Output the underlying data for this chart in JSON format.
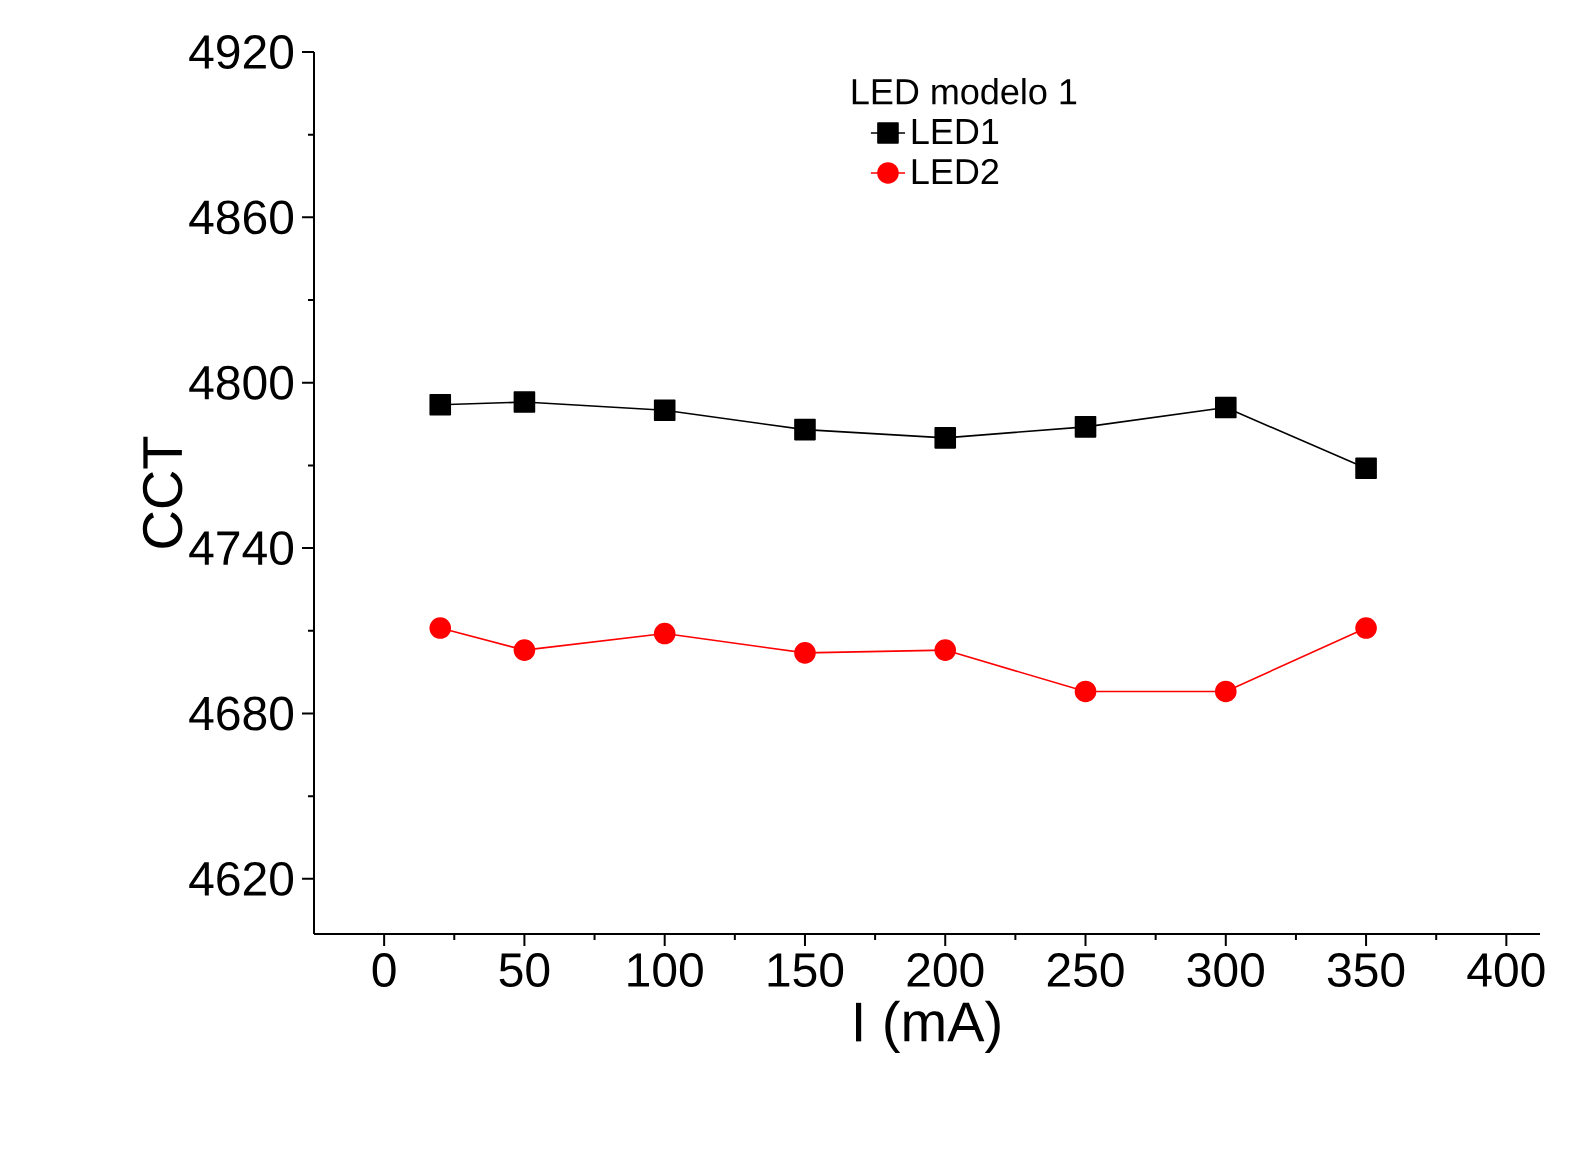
{
  "chart_data": {
    "type": "line",
    "xlabel": "I (mA)",
    "ylabel": "CCT",
    "legend_title": "LED modelo 1",
    "legend": "top",
    "grid": false,
    "x": [
      20,
      50,
      100,
      150,
      200,
      250,
      300,
      350
    ],
    "xlim": [
      -25,
      412
    ],
    "xticks": [
      0,
      50,
      100,
      150,
      200,
      250,
      300,
      350,
      400
    ],
    "ylim": [
      4600,
      4920
    ],
    "yticks": [
      4620,
      4680,
      4740,
      4800,
      4860,
      4920
    ],
    "series": [
      {
        "name": "LED1",
        "color": "#000000",
        "marker": "square",
        "values": [
          4792,
          4793,
          4790,
          4783,
          4780,
          4784,
          4791,
          4769
        ]
      },
      {
        "name": "LED2",
        "color": "#ff0000",
        "marker": "circle",
        "values": [
          4711,
          4703,
          4709,
          4702,
          4703,
          4688,
          4688,
          4711
        ]
      }
    ]
  }
}
